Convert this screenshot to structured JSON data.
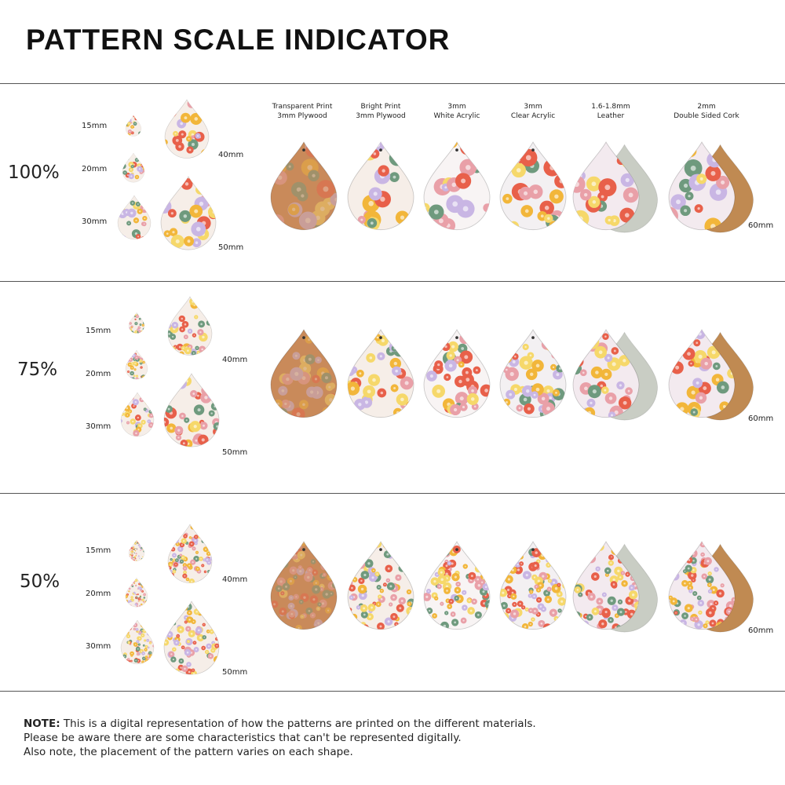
{
  "title": "PATTERN SCALE INDICATOR",
  "materials": [
    {
      "line1": "Transparent Print",
      "line2": "3mm Plywood",
      "base": "#c98a5a"
    },
    {
      "line1": "Bright Print",
      "line2": "3mm Plywood",
      "base": "#f6eee8"
    },
    {
      "line1": "3mm",
      "line2": "White Acrylic",
      "base": "#f8f4f4"
    },
    {
      "line1": "3mm",
      "line2": "Clear Acrylic",
      "base": "#f3f0f2"
    },
    {
      "line1": "1.6-1.8mm",
      "line2": "Leather",
      "base": "#f3eaef",
      "backing": "#c9cdc4"
    },
    {
      "line1": "2mm",
      "line2": "Double Sided Cork",
      "base": "#f3eaef",
      "backing": "#c08a52"
    }
  ],
  "sections": [
    {
      "scale": "100%",
      "scale_value": 1.0
    },
    {
      "scale": "75%",
      "scale_value": 0.75
    },
    {
      "scale": "50%",
      "scale_value": 0.5
    }
  ],
  "sizes": [
    "15mm",
    "20mm",
    "30mm",
    "40mm",
    "50mm"
  ],
  "large_size": "60mm",
  "pattern_colors": [
    "#c9b6e4",
    "#f2b63a",
    "#e8604a",
    "#6f9a7e",
    "#f6d86a",
    "#e9a0a8"
  ],
  "note": {
    "bold": "NOTE:",
    "line1": " This is a digital representation of how the patterns are printed on the different materials.",
    "line2": "Please be aware there are some characteristics that can't be represented digitally.",
    "line3": "Also note, the placement of the pattern varies on each shape."
  }
}
